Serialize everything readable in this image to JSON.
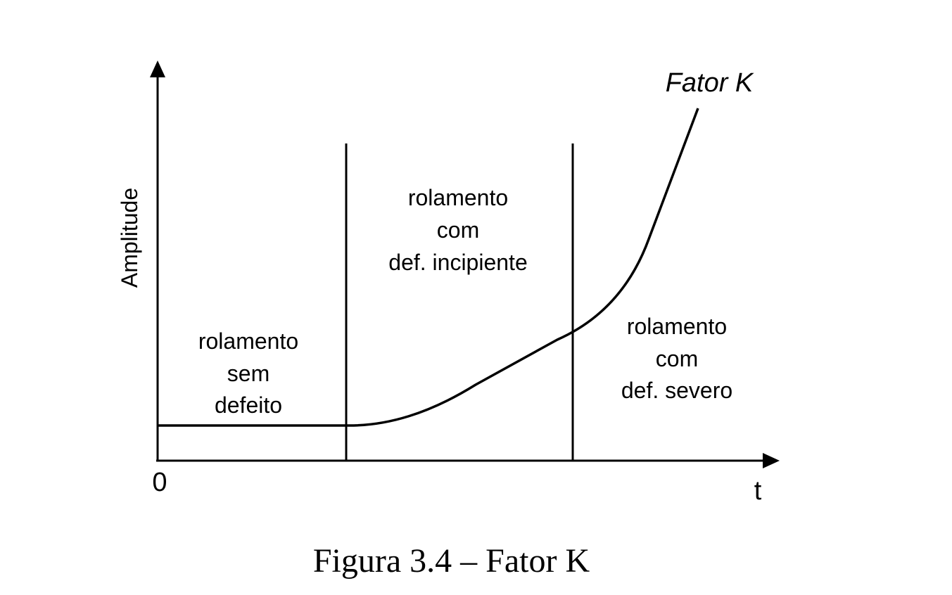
{
  "diagram": {
    "y_axis_label": "Amplitude",
    "origin_label": "0",
    "x_axis_label": "t",
    "curve_label": "Fator K",
    "regions": [
      {
        "lines": [
          "rolamento",
          "sem",
          "defeito"
        ]
      },
      {
        "lines": [
          "rolamento",
          "com",
          "def. incipiente"
        ]
      },
      {
        "lines": [
          "rolamento",
          "com",
          "def. severo"
        ]
      }
    ]
  },
  "caption": "Figura 3.4 – Fator K",
  "colors": {
    "ink": "#000000",
    "background": "#ffffff"
  }
}
